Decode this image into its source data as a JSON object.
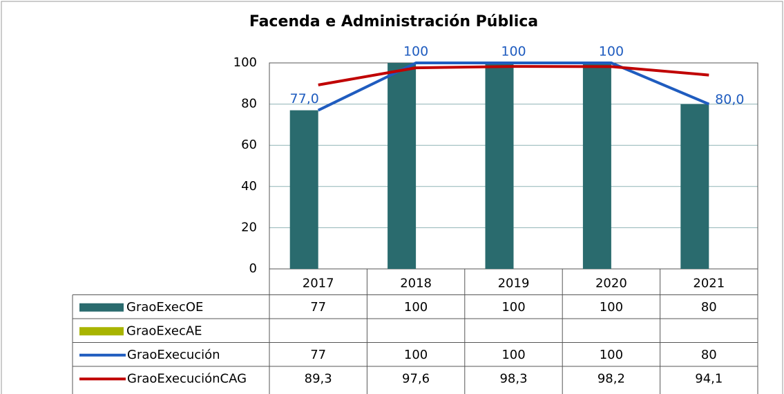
{
  "chart_data": {
    "type": "bar",
    "title": "Facenda e Administración Pública",
    "categories": [
      "2017",
      "2018",
      "2019",
      "2020",
      "2021"
    ],
    "series": [
      {
        "name": "GraoExecOE",
        "type": "bar",
        "color": "#2a6b6e",
        "values": [
          77,
          100,
          100,
          100,
          80
        ]
      },
      {
        "name": "GraoExecAE",
        "type": "bar",
        "color": "#a8b400",
        "values": [
          null,
          null,
          null,
          null,
          null
        ]
      },
      {
        "name": "GraoExecución",
        "type": "line",
        "color": "#1f5cbf",
        "values": [
          77,
          100,
          100,
          100,
          80
        ],
        "value_labels": [
          "77,0",
          "100",
          "100",
          "100",
          "80,0"
        ]
      },
      {
        "name": "GraoExecuciónCAG",
        "type": "line",
        "color": "#c00000",
        "values": [
          89.3,
          97.6,
          98.3,
          98.2,
          94.1
        ],
        "value_labels": [
          "89,3",
          "97,6",
          "98,3",
          "98,2",
          "94,1"
        ]
      }
    ],
    "ylim": [
      0,
      100
    ],
    "yticks": [
      0,
      20,
      40,
      60,
      80,
      100
    ],
    "grid": true,
    "data_table": true
  }
}
